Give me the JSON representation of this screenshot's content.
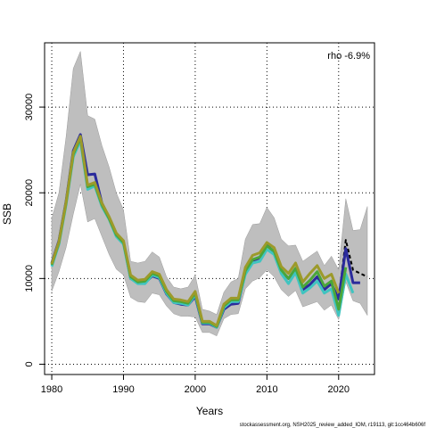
{
  "chart_data": {
    "type": "line",
    "xlabel": "Years",
    "ylabel": "SSB",
    "annotation": "rho -6.9%",
    "footer": "stockassessment.org, NSH2025_review_added_IOM, r19113, git:1cc464b606f",
    "xlim": [
      1979,
      2025
    ],
    "ylim": [
      -1200,
      37500
    ],
    "xticks": [
      1980,
      1990,
      2000,
      2010,
      2020
    ],
    "yticks": [
      0,
      10000,
      20000,
      30000
    ],
    "grid": "dotted",
    "band": {
      "x": [
        1980,
        1981,
        1982,
        1983,
        1984,
        1985,
        1986,
        1987,
        1988,
        1989,
        1990,
        1991,
        1992,
        1993,
        1994,
        1995,
        1996,
        1997,
        1998,
        1999,
        2000,
        2001,
        2002,
        2003,
        2004,
        2005,
        2006,
        2007,
        2008,
        2009,
        2010,
        2011,
        2012,
        2013,
        2014,
        2015,
        2016,
        2017,
        2018,
        2019,
        2020,
        2021,
        2022,
        2023,
        2024
      ],
      "upper": [
        17000,
        20000,
        26500,
        34500,
        36500,
        29000,
        28600,
        25500,
        23000,
        20000,
        18000,
        12000,
        11800,
        12000,
        13100,
        12500,
        10200,
        9000,
        8800,
        9000,
        10400,
        6400,
        6200,
        5800,
        8400,
        9600,
        10000,
        14600,
        16300,
        16400,
        18300,
        17100,
        14600,
        13800,
        13900,
        12000,
        12600,
        13200,
        11500,
        12600,
        11000,
        19300,
        15600,
        15700,
        18400
      ],
      "lower": [
        8500,
        10800,
        13600,
        17500,
        21000,
        16600,
        17000,
        14900,
        12800,
        11100,
        10400,
        7800,
        7300,
        7200,
        8300,
        8100,
        6800,
        5900,
        5600,
        5600,
        5500,
        3700,
        3700,
        3300,
        5300,
        5800,
        5900,
        8800,
        9700,
        10100,
        11000,
        10200,
        8700,
        7900,
        8600,
        6700,
        7000,
        7300,
        6300,
        6900,
        5200,
        9600,
        7400,
        7100,
        5700
      ]
    },
    "series": [
      {
        "color": "#000000",
        "dashed": true,
        "x": [
          2020,
          2021,
          2022,
          2023,
          2024
        ],
        "values": [
          7600,
          14500,
          11000,
          10600,
          10200
        ]
      },
      {
        "color": "#2b2b9c",
        "x": [
          1980,
          1981,
          1982,
          1983,
          1984,
          1985,
          1986,
          1987,
          1988,
          1989,
          1990,
          1991,
          1992,
          1993,
          1994,
          1995,
          1996,
          1997,
          1998,
          1999,
          2000,
          2001,
          2002,
          2003,
          2004,
          2005,
          2006,
          2007,
          2008,
          2009,
          2010,
          2011,
          2012,
          2013,
          2014,
          2015,
          2016,
          2017,
          2018,
          2019,
          2020,
          2021,
          2022,
          2023
        ],
        "values": [
          11800,
          14400,
          19000,
          24900,
          26800,
          22100,
          22200,
          18800,
          17100,
          15000,
          14200,
          10000,
          9500,
          9500,
          10300,
          10000,
          8200,
          7200,
          7000,
          6900,
          7900,
          4700,
          4700,
          4300,
          6400,
          7000,
          7100,
          10700,
          12100,
          12400,
          13900,
          13100,
          10900,
          10000,
          11000,
          8700,
          9300,
          10200,
          8700,
          9400,
          7600,
          13500,
          9500,
          9500
        ]
      },
      {
        "color": "#40c4c0",
        "x": [
          1980,
          1981,
          1982,
          1983,
          1984,
          1985,
          1986,
          1987,
          1988,
          1989,
          1990,
          1991,
          1992,
          1993,
          1994,
          1995,
          1996,
          1997,
          1998,
          1999,
          2000,
          2001,
          2002,
          2003,
          2004,
          2005,
          2006,
          2007,
          2008,
          2009,
          2010,
          2011,
          2012,
          2013,
          2014,
          2015,
          2016,
          2017,
          2018,
          2019,
          2020,
          2021,
          2022
        ],
        "values": [
          11400,
          14000,
          18600,
          24200,
          26100,
          20400,
          20800,
          18400,
          16900,
          14900,
          14000,
          10000,
          9400,
          9400,
          10400,
          10100,
          8300,
          7200,
          7100,
          6900,
          8100,
          4800,
          4800,
          4300,
          6600,
          7300,
          7300,
          10500,
          11800,
          12000,
          13400,
          12800,
          10600,
          9400,
          10700,
          8300,
          8900,
          9700,
          8300,
          8800,
          5700,
          10500,
          8300
        ]
      },
      {
        "color": "#4aa63a",
        "x": [
          1980,
          1981,
          1982,
          1983,
          1984,
          1985,
          1986,
          1987,
          1988,
          1989,
          1990,
          1991,
          1992,
          1993,
          1994,
          1995,
          1996,
          1997,
          1998,
          1999,
          2000,
          2001,
          2002,
          2003,
          2004,
          2005,
          2006,
          2007,
          2008,
          2009,
          2010,
          2011,
          2012,
          2013,
          2014,
          2015,
          2016,
          2017,
          2018,
          2019,
          2020,
          2021
        ],
        "values": [
          11600,
          14200,
          18800,
          24500,
          26400,
          20700,
          21000,
          18600,
          17000,
          15100,
          14200,
          10200,
          9600,
          9700,
          10600,
          10300,
          8500,
          7400,
          7300,
          7100,
          8300,
          4900,
          4900,
          4400,
          6800,
          7500,
          7500,
          10900,
          12200,
          12500,
          13800,
          13200,
          11000,
          10000,
          11200,
          9000,
          9800,
          10800,
          9100,
          9700,
          6400,
          11300
        ]
      },
      {
        "color": "#9c9a2a",
        "x": [
          1980,
          1981,
          1982,
          1983,
          1984,
          1985,
          1986,
          1987,
          1988,
          1989,
          1990,
          1991,
          1992,
          1993,
          1994,
          1995,
          1996,
          1997,
          1998,
          1999,
          2000,
          2001,
          2002,
          2003,
          2004,
          2005,
          2006,
          2007,
          2008,
          2009,
          2010,
          2011,
          2012,
          2013,
          2014,
          2015,
          2016,
          2017,
          2018,
          2019,
          2020
        ],
        "values": [
          11700,
          14300,
          18900,
          24700,
          26600,
          20900,
          21200,
          18800,
          17200,
          15300,
          14400,
          10400,
          9800,
          9900,
          10800,
          10500,
          8700,
          7600,
          7500,
          7300,
          8500,
          5000,
          5000,
          4500,
          7000,
          7700,
          7700,
          11300,
          12700,
          13000,
          14200,
          13600,
          11400,
          10600,
          11800,
          9600,
          10600,
          11500,
          10000,
          10500,
          8300
        ]
      }
    ]
  }
}
